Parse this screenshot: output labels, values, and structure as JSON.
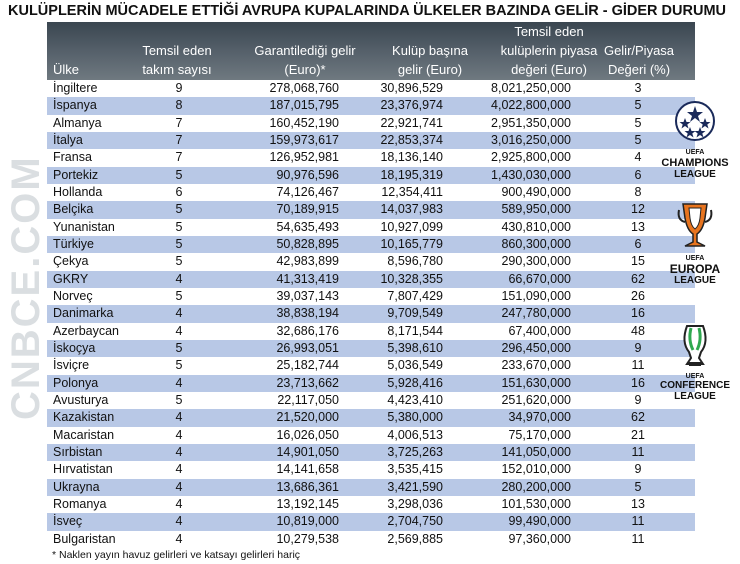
{
  "title": "KULÜPLERİN MÜCADELE ETTİĞİ AVRUPA KUPALARINDA ÜLKELER BAZINDA GELİR - GİDER DURUMU",
  "columns": {
    "country": "Ülke",
    "teams": [
      "Temsil eden",
      "takım sayısı"
    ],
    "guaranteed": [
      "Garantilediği gelir",
      "(Euro)*"
    ],
    "perclub": [
      "Kulüp başına",
      "gelir (Euro)"
    ],
    "market": [
      "Temsil eden",
      "kulüplerin piyasa",
      "değeri (Euro)"
    ],
    "ratio": [
      "Gelir/Piyasa",
      "Değeri (%)"
    ]
  },
  "rows": [
    {
      "country": "İngiltere",
      "teams": "9",
      "guaranteed": "278,068,760",
      "perclub": "30,896,529",
      "market": "8,021,250,000",
      "ratio": "3"
    },
    {
      "country": "İspanya",
      "teams": "8",
      "guaranteed": "187,015,795",
      "perclub": "23,376,974",
      "market": "4,022,800,000",
      "ratio": "5"
    },
    {
      "country": "Almanya",
      "teams": "7",
      "guaranteed": "160,452,190",
      "perclub": "22,921,741",
      "market": "2,951,350,000",
      "ratio": "5"
    },
    {
      "country": "İtalya",
      "teams": "7",
      "guaranteed": "159,973,617",
      "perclub": "22,853,374",
      "market": "3,016,250,000",
      "ratio": "5"
    },
    {
      "country": "Fransa",
      "teams": "7",
      "guaranteed": "126,952,981",
      "perclub": "18,136,140",
      "market": "2,925,800,000",
      "ratio": "4"
    },
    {
      "country": "Portekiz",
      "teams": "5",
      "guaranteed": "90,976,596",
      "perclub": "18,195,319",
      "market": "1,430,030,000",
      "ratio": "6"
    },
    {
      "country": "Hollanda",
      "teams": "6",
      "guaranteed": "74,126,467",
      "perclub": "12,354,411",
      "market": "900,490,000",
      "ratio": "8"
    },
    {
      "country": "Belçika",
      "teams": "5",
      "guaranteed": "70,189,915",
      "perclub": "14,037,983",
      "market": "589,950,000",
      "ratio": "12"
    },
    {
      "country": "Yunanistan",
      "teams": "5",
      "guaranteed": "54,635,493",
      "perclub": "10,927,099",
      "market": "430,810,000",
      "ratio": "13"
    },
    {
      "country": "Türkiye",
      "teams": "5",
      "guaranteed": "50,828,895",
      "perclub": "10,165,779",
      "market": "860,300,000",
      "ratio": "6"
    },
    {
      "country": "Çekya",
      "teams": "5",
      "guaranteed": "42,983,899",
      "perclub": "8,596,780",
      "market": "290,300,000",
      "ratio": "15"
    },
    {
      "country": "GKRY",
      "teams": "4",
      "guaranteed": "41,313,419",
      "perclub": "10,328,355",
      "market": "66,670,000",
      "ratio": "62"
    },
    {
      "country": "Norveç",
      "teams": "5",
      "guaranteed": "39,037,143",
      "perclub": "7,807,429",
      "market": "151,090,000",
      "ratio": "26"
    },
    {
      "country": "Danimarka",
      "teams": "4",
      "guaranteed": "38,838,194",
      "perclub": "9,709,549",
      "market": "247,780,000",
      "ratio": "16"
    },
    {
      "country": "Azerbaycan",
      "teams": "4",
      "guaranteed": "32,686,176",
      "perclub": "8,171,544",
      "market": "67,400,000",
      "ratio": "48"
    },
    {
      "country": "İskoçya",
      "teams": "5",
      "guaranteed": "26,993,051",
      "perclub": "5,398,610",
      "market": "296,450,000",
      "ratio": "9"
    },
    {
      "country": "İsviçre",
      "teams": "5",
      "guaranteed": "25,182,744",
      "perclub": "5,036,549",
      "market": "233,670,000",
      "ratio": "11"
    },
    {
      "country": "Polonya",
      "teams": "4",
      "guaranteed": "23,713,662",
      "perclub": "5,928,416",
      "market": "151,630,000",
      "ratio": "16"
    },
    {
      "country": "Avusturya",
      "teams": "5",
      "guaranteed": "22,117,050",
      "perclub": "4,423,410",
      "market": "251,620,000",
      "ratio": "9"
    },
    {
      "country": "Kazakistan",
      "teams": "4",
      "guaranteed": "21,520,000",
      "perclub": "5,380,000",
      "market": "34,970,000",
      "ratio": "62"
    },
    {
      "country": "Macaristan",
      "teams": "4",
      "guaranteed": "16,026,050",
      "perclub": "4,006,513",
      "market": "75,170,000",
      "ratio": "21"
    },
    {
      "country": "Sırbistan",
      "teams": "4",
      "guaranteed": "14,901,050",
      "perclub": "3,725,263",
      "market": "141,050,000",
      "ratio": "11"
    },
    {
      "country": "Hırvatistan",
      "teams": "4",
      "guaranteed": "14,141,658",
      "perclub": "3,535,415",
      "market": "152,010,000",
      "ratio": "9"
    },
    {
      "country": "Ukrayna",
      "teams": "4",
      "guaranteed": "13,686,361",
      "perclub": "3,421,590",
      "market": "280,200,000",
      "ratio": "5"
    },
    {
      "country": "Romanya",
      "teams": "4",
      "guaranteed": "13,192,145",
      "perclub": "3,298,036",
      "market": "101,530,000",
      "ratio": "13"
    },
    {
      "country": "İsveç",
      "teams": "4",
      "guaranteed": "10,819,000",
      "perclub": "2,704,750",
      "market": "99,490,000",
      "ratio": "11"
    },
    {
      "country": "Bulgaristan",
      "teams": "4",
      "guaranteed": "10,279,538",
      "perclub": "2,569,885",
      "market": "97,360,000",
      "ratio": "11"
    }
  ],
  "footnote": "* Naklen yayın havuz gelirleri ve katsayı gelirleri hariç",
  "logos": {
    "champions": {
      "small": "UEFA",
      "line1": "CHAMPIONS",
      "line2": "LEAGUE"
    },
    "europa": {
      "small": "UEFA",
      "line1": "EUROPA",
      "line2": "LEAGUE"
    },
    "conference": {
      "small": "UEFA",
      "line1": "CONFERENCE",
      "line2": "LEAGUE"
    }
  },
  "watermark": "CNBCE.COM",
  "colors": {
    "row_alt": "#b8c8e6",
    "header_bg": "#4a555e",
    "europa_orange": "#e8741e",
    "conference_green": "#2fa84f"
  }
}
